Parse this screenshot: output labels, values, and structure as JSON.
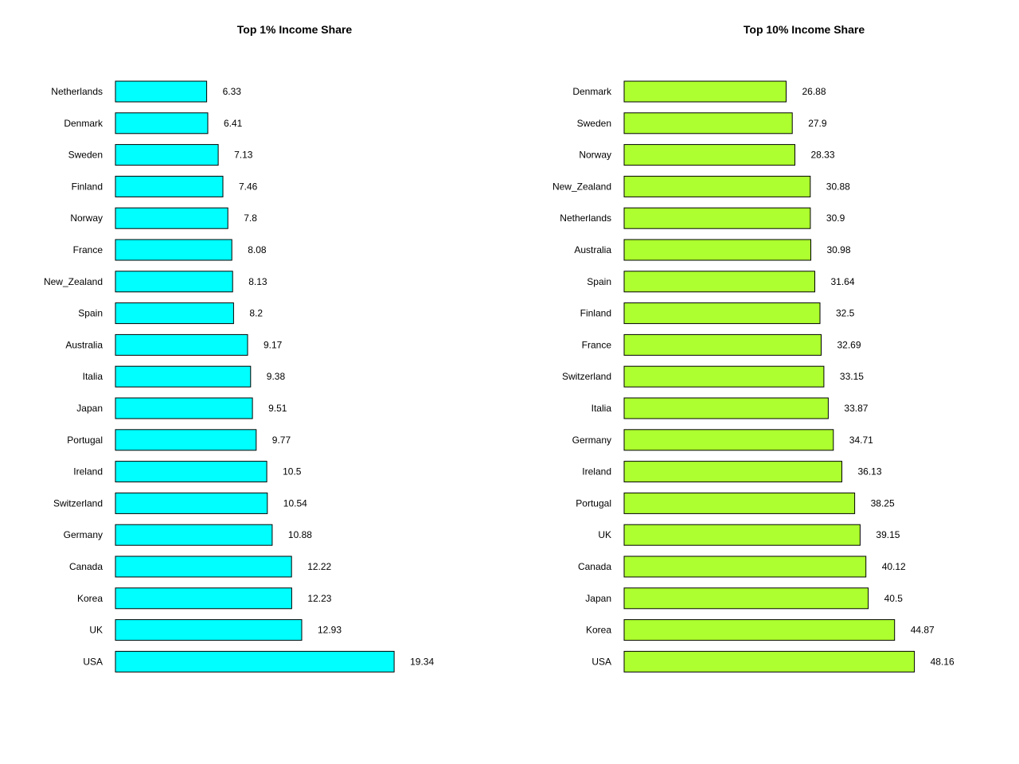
{
  "chart_data": [
    {
      "type": "bar",
      "orientation": "horizontal",
      "title": "Top 1% Income Share",
      "xlabel": "",
      "ylabel": "",
      "color": "#00ffff",
      "xlim": [
        0,
        20
      ],
      "grid": false,
      "categories": [
        "Netherlands",
        "Denmark",
        "Sweden",
        "Finland",
        "Norway",
        "France",
        "New_Zealand",
        "Spain",
        "Australia",
        "Italia",
        "Japan",
        "Portugal",
        "Ireland",
        "Switzerland",
        "Germany",
        "Canada",
        "Korea",
        "UK",
        "USA"
      ],
      "values": [
        6.33,
        6.41,
        7.13,
        7.46,
        7.8,
        8.08,
        8.13,
        8.2,
        9.17,
        9.38,
        9.51,
        9.77,
        10.5,
        10.54,
        10.88,
        12.22,
        12.23,
        12.93,
        19.34
      ],
      "value_labels": [
        "6.33",
        "6.41",
        "7.13",
        "7.46",
        "7.8",
        "8.08",
        "8.13",
        "8.2",
        "9.17",
        "9.38",
        "9.51",
        "9.77",
        "10.5",
        "10.54",
        "10.88",
        "12.22",
        "12.23",
        "12.93",
        "19.34"
      ]
    },
    {
      "type": "bar",
      "orientation": "horizontal",
      "title": "Top 10% Income Share",
      "xlabel": "",
      "ylabel": "",
      "color": "#adff2f",
      "xlim": [
        0,
        50
      ],
      "grid": false,
      "categories": [
        "Denmark",
        "Sweden",
        "Norway",
        "New_Zealand",
        "Netherlands",
        "Australia",
        "Spain",
        "Finland",
        "France",
        "Switzerland",
        "Italia",
        "Germany",
        "Ireland",
        "Portugal",
        "UK",
        "Canada",
        "Japan",
        "Korea",
        "USA"
      ],
      "values": [
        26.88,
        27.9,
        28.33,
        30.88,
        30.9,
        30.98,
        31.64,
        32.5,
        32.69,
        33.15,
        33.87,
        34.71,
        36.13,
        38.25,
        39.15,
        40.12,
        40.5,
        44.87,
        48.16
      ],
      "value_labels": [
        "26.88",
        "27.9",
        "28.33",
        "30.88",
        "30.9",
        "30.98",
        "31.64",
        "32.5",
        "32.69",
        "33.15",
        "33.87",
        "34.71",
        "36.13",
        "38.25",
        "39.15",
        "40.12",
        "40.5",
        "44.87",
        "48.16"
      ]
    }
  ]
}
